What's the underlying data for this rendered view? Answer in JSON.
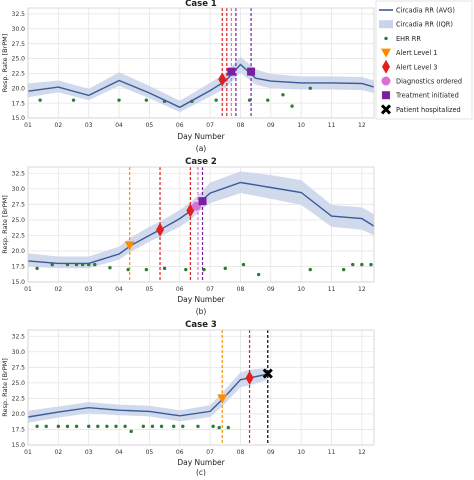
{
  "colors": {
    "avg_line": "#3b5b98",
    "iqr_band": "#c9d3ea",
    "ehr": "#2e7d32",
    "alert1": "#ff8c00",
    "alert3": "#e02020",
    "diagnostics": "#da70d6",
    "treatment": "#7b1fa2",
    "hospitalized": "#000000",
    "grid": "#e6e6e6",
    "axes_bg": "#ffffff"
  },
  "legend": {
    "placement": "top-right (outside Case 1)",
    "items": [
      {
        "key": "avg",
        "label": "Circadia RR (AVG)"
      },
      {
        "key": "iqr",
        "label": "Circadia RR (IQR)"
      },
      {
        "key": "ehr",
        "label": "EHR RR"
      },
      {
        "key": "alert1",
        "label": "Alert Level 1"
      },
      {
        "key": "alert3",
        "label": "Alert Level 3"
      },
      {
        "key": "diagnostics",
        "label": "Diagnostics ordered"
      },
      {
        "key": "treatment",
        "label": "Treatment initiated"
      },
      {
        "key": "hospitalized",
        "label": "Patient hospitalized"
      }
    ]
  },
  "chart_data": [
    {
      "type": "line",
      "title": "Case 1",
      "caption": "(a)",
      "xlabel": "Day Number",
      "ylabel": "Resp. Rate [BrPM]",
      "xlim": [
        1,
        12.4
      ],
      "ylim": [
        15,
        33.5
      ],
      "xticks": [
        "01",
        "02",
        "03",
        "04",
        "05",
        "06",
        "07",
        "08",
        "09",
        "10",
        "11",
        "12"
      ],
      "yticks": [
        "15.0",
        "17.5",
        "20.0",
        "22.5",
        "25.0",
        "27.5",
        "30.0",
        "32.5"
      ],
      "grid": true,
      "avg": {
        "x": [
          1,
          2,
          3,
          4,
          5,
          6,
          7,
          7.5,
          8,
          8.5,
          9,
          10,
          11,
          12,
          12.4
        ],
        "y": [
          19.5,
          20.2,
          18.8,
          21.3,
          19.2,
          16.8,
          19.6,
          21.2,
          24.0,
          21.7,
          21.2,
          20.9,
          20.9,
          20.8,
          20.2
        ]
      },
      "iqr_low": [
        18.5,
        19.3,
        18.0,
        20.4,
        18.3,
        16.0,
        18.6,
        20.0,
        22.6,
        20.6,
        20.0,
        19.8,
        19.8,
        19.7,
        19.2
      ],
      "iqr_high": [
        20.8,
        21.3,
        19.9,
        22.7,
        20.4,
        17.9,
        20.9,
        22.6,
        25.3,
        23.2,
        22.4,
        22.0,
        22.0,
        21.9,
        21.3
      ],
      "ehr": {
        "x": [
          1.4,
          2.5,
          4.0,
          4.9,
          5.5,
          6.4,
          7.2,
          8.3,
          8.9,
          9.4,
          9.7,
          10.3
        ],
        "y": [
          18.0,
          18.0,
          18.0,
          18.0,
          17.8,
          17.8,
          18.0,
          18.0,
          18.0,
          18.9,
          17.0,
          20.0
        ]
      },
      "vlines": [
        {
          "key": "alert3",
          "x": 7.4
        },
        {
          "key": "alert3",
          "x": 7.55
        },
        {
          "key": "diagnostics",
          "x": 7.7
        },
        {
          "key": "treatment",
          "x": 7.85
        },
        {
          "key": "treatment",
          "x": 8.35
        }
      ],
      "markers": [
        {
          "key": "alert3",
          "x": 7.4,
          "y": 21.5
        },
        {
          "key": "treatment",
          "x": 7.7,
          "y": 22.8
        },
        {
          "key": "treatment",
          "x": 8.35,
          "y": 22.8
        }
      ]
    },
    {
      "type": "line",
      "title": "Case 2",
      "caption": "(b)",
      "xlabel": "Day Number",
      "ylabel": "Resp. Rate [BrPM]",
      "xlim": [
        1,
        12.4
      ],
      "ylim": [
        15,
        33.5
      ],
      "xticks": [
        "01",
        "02",
        "03",
        "04",
        "05",
        "06",
        "07",
        "08",
        "09",
        "10",
        "11",
        "12"
      ],
      "yticks": [
        "15.0",
        "17.5",
        "20.0",
        "22.5",
        "25.0",
        "27.5",
        "30.0",
        "32.5"
      ],
      "grid": true,
      "avg": {
        "x": [
          1,
          2,
          3,
          4,
          4.4,
          5,
          5.35,
          6,
          6.4,
          6.7,
          7,
          8,
          9,
          10,
          11,
          12,
          12.4
        ],
        "y": [
          18.4,
          18.0,
          18.0,
          19.5,
          20.9,
          22.5,
          23.4,
          25.2,
          26.6,
          28.0,
          29.3,
          31.0,
          30.2,
          29.4,
          25.6,
          25.2,
          24.0
        ]
      },
      "iqr_low": [
        17.5,
        17.2,
        17.2,
        18.6,
        19.9,
        21.5,
        22.3,
        23.9,
        25.2,
        26.6,
        27.7,
        29.3,
        28.4,
        27.4,
        23.9,
        23.4,
        22.5
      ],
      "iqr_high": [
        19.6,
        19.1,
        19.1,
        20.7,
        22.2,
        23.9,
        24.7,
        26.6,
        28.0,
        29.4,
        31.0,
        32.8,
        32.2,
        31.4,
        27.4,
        27.0,
        25.9
      ],
      "ehr": {
        "x": [
          1.3,
          1.8,
          2.3,
          2.6,
          2.8,
          3.0,
          3.2,
          3.7,
          4.3,
          4.9,
          5.5,
          6.2,
          6.8,
          7.5,
          8.1,
          8.6,
          10.3,
          11.4,
          11.7,
          12.0,
          12.3
        ],
        "y": [
          17.2,
          17.8,
          17.8,
          17.8,
          17.8,
          17.8,
          17.8,
          17.3,
          17.0,
          17.0,
          17.2,
          17.0,
          17.0,
          17.2,
          17.8,
          16.2,
          17.0,
          17.0,
          17.8,
          17.8,
          17.8
        ]
      },
      "vlines": [
        {
          "key": "alert1",
          "x": 4.35
        },
        {
          "key": "alert3",
          "x": 5.35
        },
        {
          "key": "alert3",
          "x": 6.35
        },
        {
          "key": "diagnostics",
          "x": 6.6
        },
        {
          "key": "treatment",
          "x": 6.75
        }
      ],
      "markers": [
        {
          "key": "alert1",
          "x": 4.35,
          "y": 20.9
        },
        {
          "key": "alert3",
          "x": 5.35,
          "y": 23.4
        },
        {
          "key": "alert3",
          "x": 6.35,
          "y": 26.5
        },
        {
          "key": "diagnostics",
          "x": 6.55,
          "y": 27.2
        },
        {
          "key": "treatment",
          "x": 6.75,
          "y": 28.0
        }
      ]
    },
    {
      "type": "line",
      "title": "Case 3",
      "caption": "(c)",
      "xlabel": "Day Number",
      "ylabel": "Resp. Rate [BrPM]",
      "xlim": [
        1,
        12.4
      ],
      "ylim": [
        15,
        33.5
      ],
      "xticks": [
        "01",
        "02",
        "03",
        "04",
        "05",
        "06",
        "07",
        "08",
        "09",
        "10",
        "11",
        "12"
      ],
      "yticks": [
        "15.0",
        "17.5",
        "20.0",
        "22.5",
        "25.0",
        "27.5",
        "30.0",
        "32.5"
      ],
      "grid": true,
      "avg": {
        "x": [
          1,
          2,
          3,
          4,
          5,
          6,
          7,
          7.4,
          8,
          8.3,
          8.9
        ],
        "y": [
          19.5,
          20.3,
          21.0,
          20.6,
          20.4,
          19.7,
          20.4,
          22.3,
          25.5,
          25.8,
          26.4
        ]
      },
      "iqr_low": [
        18.6,
        19.4,
        20.1,
        19.8,
        19.6,
        18.8,
        19.5,
        21.2,
        24.3,
        24.6,
        25.5
      ],
      "iqr_high": [
        20.5,
        21.2,
        21.9,
        21.5,
        21.3,
        20.6,
        21.4,
        23.4,
        26.7,
        27.1,
        27.4
      ],
      "ehr": {
        "x": [
          1.3,
          1.6,
          2.0,
          2.3,
          2.6,
          3.0,
          3.3,
          3.6,
          3.9,
          4.2,
          4.4,
          4.8,
          5.1,
          5.4,
          5.8,
          6.1,
          6.6,
          7.1,
          7.3,
          7.6
        ],
        "y": [
          18.0,
          18.0,
          18.0,
          18.0,
          18.0,
          18.0,
          18.0,
          18.0,
          18.0,
          18.0,
          17.2,
          18.0,
          18.0,
          18.0,
          18.0,
          18.0,
          18.0,
          18.0,
          17.8,
          17.8
        ]
      },
      "vlines": [
        {
          "key": "alert1",
          "x": 7.4
        },
        {
          "key": "alert3",
          "x": 8.3
        },
        {
          "key": "hospitalized",
          "x": 8.9
        }
      ],
      "markers": [
        {
          "key": "alert1",
          "x": 7.4,
          "y": 22.5
        },
        {
          "key": "alert3",
          "x": 8.3,
          "y": 25.8
        },
        {
          "key": "hospitalized",
          "x": 8.9,
          "y": 26.5
        }
      ]
    }
  ]
}
